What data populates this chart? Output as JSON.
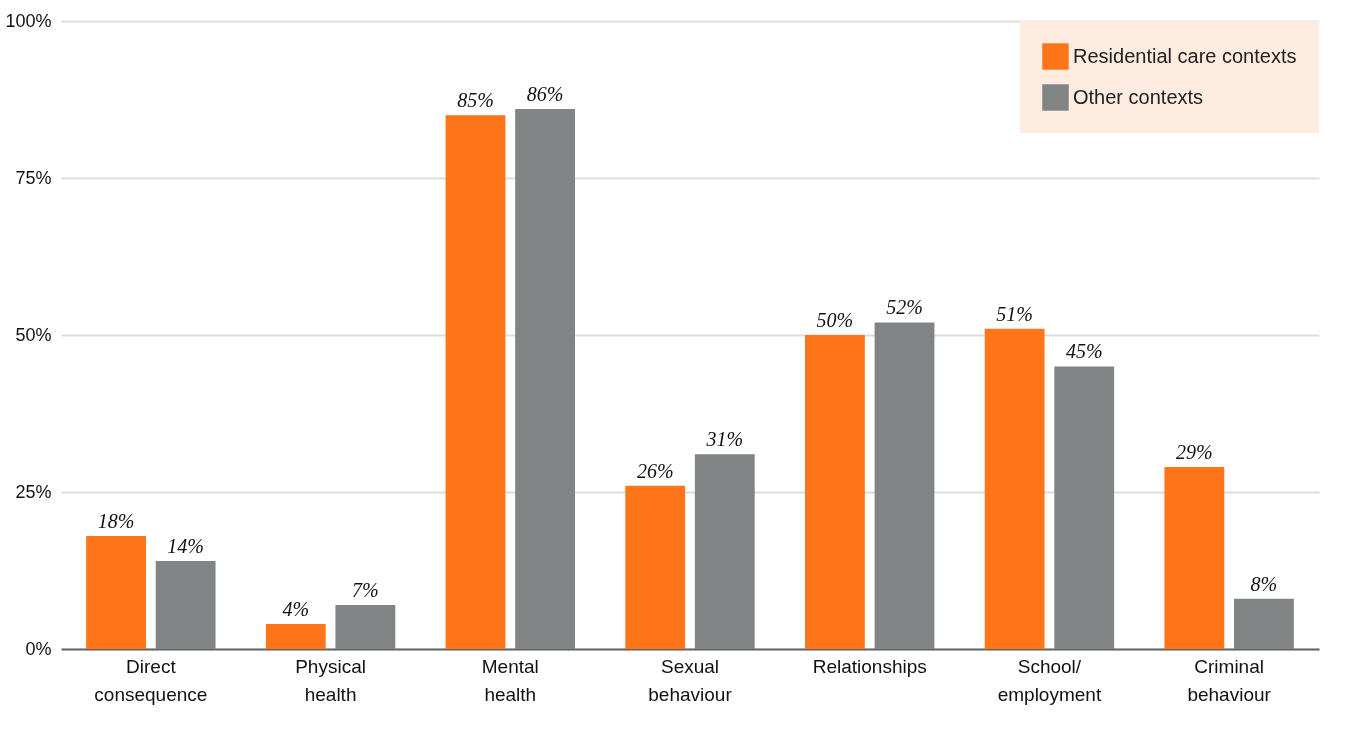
{
  "chart_data": {
    "type": "bar",
    "categories": [
      "Direct consequence",
      "Physical health",
      "Mental health",
      "Sexual behaviour",
      "Relationships",
      "School/ employment",
      "Criminal behaviour"
    ],
    "series": [
      {
        "name": "Residential care contexts",
        "color": "#ff7519",
        "values": [
          18,
          4,
          85,
          26,
          50,
          51,
          29
        ],
        "value_labels": [
          "18%",
          "4%",
          "85%",
          "26%",
          "50%",
          "51%",
          "29%"
        ]
      },
      {
        "name": "Other contexts",
        "color": "#818485",
        "values": [
          14,
          7,
          86,
          31,
          52,
          45,
          8
        ],
        "value_labels": [
          "14%",
          "7%",
          "86%",
          "31%",
          "52%",
          "45%",
          "8%"
        ]
      }
    ],
    "ylim": [
      0,
      100
    ],
    "yticks": [
      {
        "value": 0,
        "label": "0%"
      },
      {
        "value": 25,
        "label": "25%"
      },
      {
        "value": 50,
        "label": "50%"
      },
      {
        "value": 75,
        "label": "75%"
      },
      {
        "value": 100,
        "label": "100%"
      }
    ],
    "grid": "y",
    "legend": "top right"
  }
}
